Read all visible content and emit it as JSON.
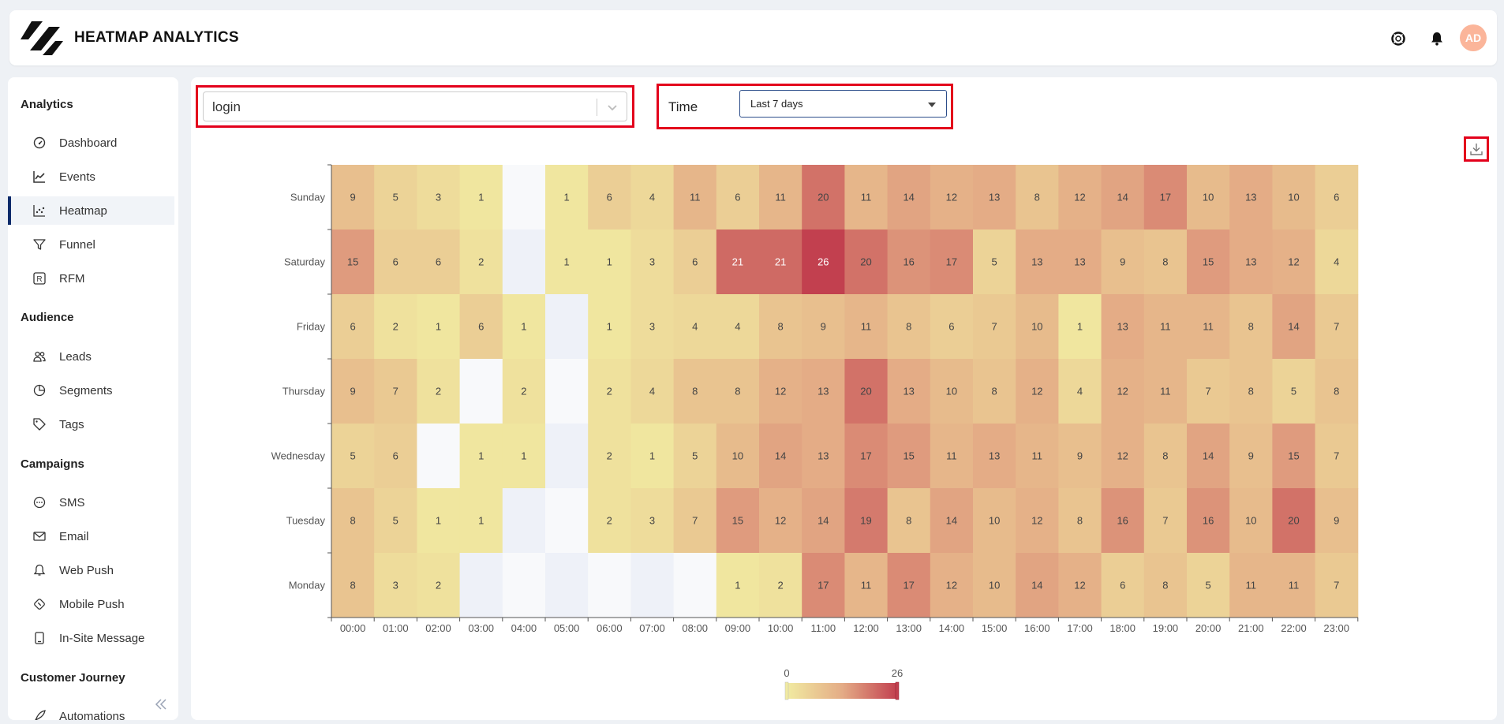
{
  "brand": {
    "name": "HEATMAP ANALYTICS"
  },
  "header": {
    "icons": [
      "support-icon",
      "bell-icon"
    ],
    "avatar_initials": "AD",
    "avatar_color": "#fbb59a"
  },
  "sidebar": {
    "sections": [
      {
        "title": "Analytics",
        "items": [
          {
            "label": "Dashboard",
            "icon": "gauge-icon"
          },
          {
            "label": "Events",
            "icon": "chart-line-icon"
          },
          {
            "label": "Heatmap",
            "icon": "heatmap-icon",
            "active": true
          },
          {
            "label": "Funnel",
            "icon": "funnel-icon"
          },
          {
            "label": "RFM",
            "icon": "rfm-icon"
          }
        ]
      },
      {
        "title": "Audience",
        "items": [
          {
            "label": "Leads",
            "icon": "users-icon"
          },
          {
            "label": "Segments",
            "icon": "pie-chart-icon"
          },
          {
            "label": "Tags",
            "icon": "tag-icon"
          }
        ]
      },
      {
        "title": "Campaigns",
        "items": [
          {
            "label": "SMS",
            "icon": "chat-icon"
          },
          {
            "label": "Email",
            "icon": "mail-icon"
          },
          {
            "label": "Web Push",
            "icon": "bell-outline-icon"
          },
          {
            "label": "Mobile Push",
            "icon": "mobile-push-icon"
          },
          {
            "label": "In-Site Message",
            "icon": "tablet-icon"
          }
        ]
      },
      {
        "title": "Customer Journey",
        "items": [
          {
            "label": "Automations",
            "icon": "rocket-icon"
          }
        ]
      }
    ],
    "collapse_icon": "double-chevron-left-icon"
  },
  "filters": {
    "event_value": "login",
    "time_label": "Time",
    "time_value": "Last 7 days",
    "highlight_color": "#e3001b"
  },
  "download_icon": "download-icon",
  "chart_data": {
    "type": "heatmap",
    "x": [
      "00:00",
      "01:00",
      "02:00",
      "03:00",
      "04:00",
      "05:00",
      "06:00",
      "07:00",
      "08:00",
      "09:00",
      "10:00",
      "11:00",
      "12:00",
      "13:00",
      "14:00",
      "15:00",
      "16:00",
      "17:00",
      "18:00",
      "19:00",
      "20:00",
      "21:00",
      "22:00",
      "23:00"
    ],
    "y": [
      "Sunday",
      "Saturday",
      "Friday",
      "Thursday",
      "Wednesday",
      "Tuesday",
      "Monday"
    ],
    "values": [
      [
        9,
        5,
        3,
        1,
        null,
        1,
        6,
        4,
        11,
        6,
        11,
        20,
        11,
        14,
        12,
        13,
        8,
        12,
        14,
        17,
        10,
        13,
        10,
        6
      ],
      [
        15,
        6,
        6,
        2,
        null,
        1,
        1,
        3,
        6,
        21,
        21,
        26,
        20,
        16,
        17,
        5,
        13,
        13,
        9,
        8,
        15,
        13,
        12,
        4
      ],
      [
        6,
        2,
        1,
        6,
        1,
        null,
        1,
        3,
        4,
        4,
        8,
        9,
        11,
        8,
        6,
        7,
        10,
        1,
        13,
        11,
        11,
        8,
        14,
        7
      ],
      [
        9,
        7,
        2,
        null,
        2,
        null,
        2,
        4,
        8,
        8,
        12,
        13,
        20,
        13,
        10,
        8,
        12,
        4,
        12,
        11,
        7,
        8,
        5,
        8
      ],
      [
        5,
        6,
        null,
        1,
        1,
        null,
        2,
        1,
        5,
        10,
        14,
        13,
        17,
        15,
        11,
        13,
        11,
        9,
        12,
        8,
        14,
        9,
        15,
        7
      ],
      [
        8,
        5,
        1,
        1,
        null,
        null,
        2,
        3,
        7,
        15,
        12,
        14,
        19,
        8,
        14,
        10,
        12,
        8,
        16,
        7,
        16,
        10,
        20,
        9
      ],
      [
        8,
        3,
        2,
        null,
        null,
        null,
        null,
        null,
        null,
        1,
        2,
        17,
        11,
        17,
        12,
        10,
        14,
        12,
        6,
        8,
        5,
        11,
        11,
        7
      ]
    ],
    "visual_map": {
      "min": 0,
      "max": 26,
      "min_label": "0",
      "max_label": "26"
    },
    "colors": {
      "low": "#f1eba1",
      "mid": "#e4ac86",
      "high": "#c2404f",
      "empty_a": "#f8f9fb",
      "empty_b": "#eef1f8"
    }
  }
}
